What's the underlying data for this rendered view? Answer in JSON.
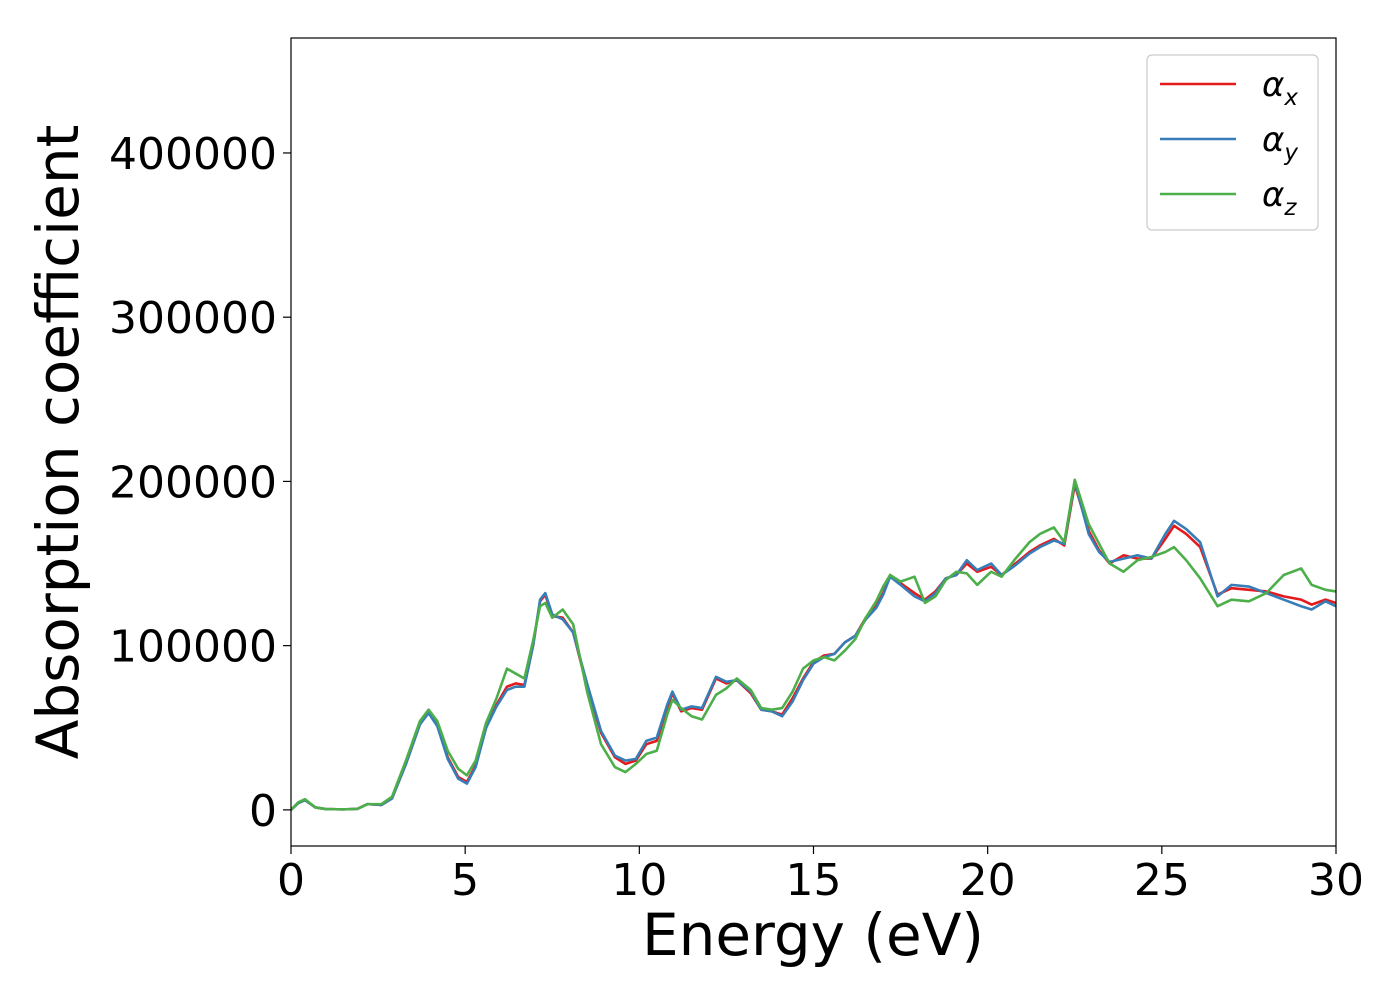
{
  "chart_data": {
    "type": "line",
    "title": "",
    "xlabel": "Energy (eV)",
    "ylabel": "Absorption coefficient",
    "xlim": [
      0,
      30
    ],
    "ylim": [
      -22000,
      470000
    ],
    "xticks": [
      0,
      5,
      10,
      15,
      20,
      25,
      30
    ],
    "yticks": [
      0,
      100000,
      200000,
      300000,
      400000
    ],
    "xtick_labels": [
      "0",
      "5",
      "10",
      "15",
      "20",
      "25",
      "30"
    ],
    "ytick_labels": [
      "0",
      "100000",
      "200000",
      "300000",
      "400000"
    ],
    "grid": false,
    "legend_position": "top-right",
    "series": [
      {
        "name": "α_x",
        "label_main": "α",
        "label_sub": "x",
        "color": "#e41a1c",
        "points": [
          [
            0,
            0
          ],
          [
            0.2,
            4000
          ],
          [
            0.4,
            6000
          ],
          [
            0.7,
            1500
          ],
          [
            1.0,
            500
          ],
          [
            1.5,
            300
          ],
          [
            1.9,
            600
          ],
          [
            2.2,
            3500
          ],
          [
            2.6,
            3000
          ],
          [
            2.9,
            7000
          ],
          [
            3.3,
            28000
          ],
          [
            3.7,
            52000
          ],
          [
            3.95,
            60000
          ],
          [
            4.2,
            52000
          ],
          [
            4.5,
            32000
          ],
          [
            4.8,
            20000
          ],
          [
            5.05,
            17000
          ],
          [
            5.3,
            27000
          ],
          [
            5.6,
            50000
          ],
          [
            5.9,
            64000
          ],
          [
            6.2,
            75000
          ],
          [
            6.45,
            77000
          ],
          [
            6.7,
            76000
          ],
          [
            6.95,
            100000
          ],
          [
            7.15,
            127000
          ],
          [
            7.3,
            131000
          ],
          [
            7.5,
            118000
          ],
          [
            7.8,
            117000
          ],
          [
            8.1,
            108000
          ],
          [
            8.5,
            75000
          ],
          [
            8.9,
            47000
          ],
          [
            9.3,
            32000
          ],
          [
            9.6,
            28000
          ],
          [
            9.9,
            30000
          ],
          [
            10.2,
            40000
          ],
          [
            10.5,
            42000
          ],
          [
            10.8,
            62000
          ],
          [
            10.95,
            71000
          ],
          [
            11.2,
            60000
          ],
          [
            11.5,
            62000
          ],
          [
            11.8,
            61000
          ],
          [
            12.2,
            80000
          ],
          [
            12.5,
            77000
          ],
          [
            12.8,
            79000
          ],
          [
            13.2,
            71000
          ],
          [
            13.5,
            61000
          ],
          [
            13.8,
            60000
          ],
          [
            14.1,
            58000
          ],
          [
            14.4,
            68000
          ],
          [
            14.7,
            80000
          ],
          [
            15.0,
            90000
          ],
          [
            15.3,
            94000
          ],
          [
            15.6,
            95000
          ],
          [
            15.9,
            102000
          ],
          [
            16.2,
            106000
          ],
          [
            16.5,
            117000
          ],
          [
            16.8,
            124000
          ],
          [
            17.0,
            132000
          ],
          [
            17.2,
            143000
          ],
          [
            17.5,
            138000
          ],
          [
            17.9,
            132000
          ],
          [
            18.2,
            128000
          ],
          [
            18.5,
            133000
          ],
          [
            18.8,
            141000
          ],
          [
            19.1,
            143000
          ],
          [
            19.4,
            150000
          ],
          [
            19.7,
            145000
          ],
          [
            20.1,
            148000
          ],
          [
            20.4,
            143000
          ],
          [
            20.8,
            150000
          ],
          [
            21.2,
            157000
          ],
          [
            21.5,
            161000
          ],
          [
            21.9,
            165000
          ],
          [
            22.2,
            161000
          ],
          [
            22.5,
            198000
          ],
          [
            22.9,
            170000
          ],
          [
            23.2,
            158000
          ],
          [
            23.5,
            150000
          ],
          [
            23.9,
            155000
          ],
          [
            24.3,
            153000
          ],
          [
            24.7,
            153000
          ],
          [
            25.1,
            165000
          ],
          [
            25.35,
            173000
          ],
          [
            25.7,
            168000
          ],
          [
            26.1,
            160000
          ],
          [
            26.6,
            131000
          ],
          [
            27.0,
            135000
          ],
          [
            27.5,
            134000
          ],
          [
            28.0,
            133000
          ],
          [
            28.5,
            130000
          ],
          [
            29.0,
            128000
          ],
          [
            29.3,
            125000
          ],
          [
            29.7,
            128000
          ],
          [
            30,
            126000
          ]
        ]
      },
      {
        "name": "α_y",
        "label_main": "α",
        "label_sub": "y",
        "color": "#377eb8",
        "points": [
          [
            0,
            0
          ],
          [
            0.2,
            4000
          ],
          [
            0.4,
            6000
          ],
          [
            0.7,
            1500
          ],
          [
            1.0,
            500
          ],
          [
            1.5,
            300
          ],
          [
            1.9,
            600
          ],
          [
            2.2,
            3500
          ],
          [
            2.6,
            3000
          ],
          [
            2.9,
            7000
          ],
          [
            3.3,
            28000
          ],
          [
            3.7,
            52000
          ],
          [
            3.95,
            59000
          ],
          [
            4.2,
            51000
          ],
          [
            4.5,
            31000
          ],
          [
            4.8,
            19000
          ],
          [
            5.05,
            16000
          ],
          [
            5.3,
            26000
          ],
          [
            5.6,
            50000
          ],
          [
            5.9,
            63000
          ],
          [
            6.2,
            73000
          ],
          [
            6.45,
            75000
          ],
          [
            6.7,
            75000
          ],
          [
            6.95,
            100000
          ],
          [
            7.15,
            128000
          ],
          [
            7.3,
            132000
          ],
          [
            7.5,
            119000
          ],
          [
            7.8,
            116000
          ],
          [
            8.1,
            108000
          ],
          [
            8.5,
            77000
          ],
          [
            8.9,
            48000
          ],
          [
            9.3,
            33000
          ],
          [
            9.6,
            30000
          ],
          [
            9.9,
            31000
          ],
          [
            10.2,
            42000
          ],
          [
            10.5,
            44000
          ],
          [
            10.8,
            64000
          ],
          [
            10.95,
            72000
          ],
          [
            11.2,
            61000
          ],
          [
            11.5,
            63000
          ],
          [
            11.8,
            62000
          ],
          [
            12.2,
            81000
          ],
          [
            12.5,
            78000
          ],
          [
            12.8,
            79000
          ],
          [
            13.2,
            72000
          ],
          [
            13.5,
            61000
          ],
          [
            13.8,
            60000
          ],
          [
            14.1,
            57000
          ],
          [
            14.4,
            66000
          ],
          [
            14.7,
            79000
          ],
          [
            15.0,
            89000
          ],
          [
            15.3,
            93000
          ],
          [
            15.6,
            95000
          ],
          [
            15.9,
            102000
          ],
          [
            16.2,
            106000
          ],
          [
            16.5,
            116000
          ],
          [
            16.8,
            123000
          ],
          [
            17.0,
            131000
          ],
          [
            17.2,
            142000
          ],
          [
            17.5,
            137000
          ],
          [
            17.9,
            130000
          ],
          [
            18.2,
            127000
          ],
          [
            18.5,
            132000
          ],
          [
            18.8,
            141000
          ],
          [
            19.1,
            143000
          ],
          [
            19.4,
            152000
          ],
          [
            19.7,
            146000
          ],
          [
            20.1,
            150000
          ],
          [
            20.4,
            143000
          ],
          [
            20.8,
            149000
          ],
          [
            21.2,
            156000
          ],
          [
            21.5,
            160000
          ],
          [
            21.9,
            164000
          ],
          [
            22.2,
            162000
          ],
          [
            22.5,
            200000
          ],
          [
            22.9,
            168000
          ],
          [
            23.2,
            157000
          ],
          [
            23.5,
            151000
          ],
          [
            23.9,
            153000
          ],
          [
            24.3,
            155000
          ],
          [
            24.7,
            153000
          ],
          [
            25.1,
            168000
          ],
          [
            25.35,
            176000
          ],
          [
            25.7,
            171000
          ],
          [
            26.1,
            163000
          ],
          [
            26.6,
            130000
          ],
          [
            27.0,
            137000
          ],
          [
            27.5,
            136000
          ],
          [
            28.0,
            132000
          ],
          [
            28.5,
            128000
          ],
          [
            29.0,
            124000
          ],
          [
            29.3,
            122000
          ],
          [
            29.7,
            127000
          ],
          [
            30,
            124000
          ]
        ]
      },
      {
        "name": "α_z",
        "label_main": "α",
        "label_sub": "z",
        "color": "#4daf4a",
        "points": [
          [
            0,
            0
          ],
          [
            0.2,
            4500
          ],
          [
            0.4,
            6500
          ],
          [
            0.7,
            1500
          ],
          [
            1.0,
            500
          ],
          [
            1.5,
            300
          ],
          [
            1.9,
            600
          ],
          [
            2.2,
            3500
          ],
          [
            2.6,
            3500
          ],
          [
            2.9,
            8000
          ],
          [
            3.3,
            30000
          ],
          [
            3.7,
            54000
          ],
          [
            3.95,
            61000
          ],
          [
            4.2,
            54000
          ],
          [
            4.5,
            36000
          ],
          [
            4.8,
            25000
          ],
          [
            5.05,
            21000
          ],
          [
            5.3,
            30000
          ],
          [
            5.6,
            53000
          ],
          [
            5.9,
            68000
          ],
          [
            6.2,
            86000
          ],
          [
            6.45,
            83000
          ],
          [
            6.7,
            80000
          ],
          [
            6.95,
            103000
          ],
          [
            7.15,
            124000
          ],
          [
            7.3,
            126000
          ],
          [
            7.5,
            117000
          ],
          [
            7.8,
            122000
          ],
          [
            8.1,
            113000
          ],
          [
            8.5,
            72000
          ],
          [
            8.9,
            40000
          ],
          [
            9.3,
            26000
          ],
          [
            9.6,
            23000
          ],
          [
            9.9,
            28000
          ],
          [
            10.2,
            34000
          ],
          [
            10.5,
            36000
          ],
          [
            10.8,
            58000
          ],
          [
            10.95,
            67000
          ],
          [
            11.2,
            62000
          ],
          [
            11.5,
            57000
          ],
          [
            11.8,
            55000
          ],
          [
            12.2,
            70000
          ],
          [
            12.5,
            74000
          ],
          [
            12.8,
            80000
          ],
          [
            13.2,
            73000
          ],
          [
            13.5,
            62000
          ],
          [
            13.8,
            61000
          ],
          [
            14.1,
            62000
          ],
          [
            14.4,
            72000
          ],
          [
            14.7,
            86000
          ],
          [
            15.0,
            91000
          ],
          [
            15.3,
            93000
          ],
          [
            15.6,
            91000
          ],
          [
            15.9,
            97000
          ],
          [
            16.2,
            104000
          ],
          [
            16.5,
            117000
          ],
          [
            16.8,
            127000
          ],
          [
            17.0,
            136000
          ],
          [
            17.2,
            143000
          ],
          [
            17.5,
            139000
          ],
          [
            17.9,
            142000
          ],
          [
            18.2,
            126000
          ],
          [
            18.5,
            130000
          ],
          [
            18.8,
            140000
          ],
          [
            19.1,
            145000
          ],
          [
            19.4,
            144000
          ],
          [
            19.7,
            137000
          ],
          [
            20.1,
            145000
          ],
          [
            20.4,
            142000
          ],
          [
            20.8,
            153000
          ],
          [
            21.2,
            163000
          ],
          [
            21.5,
            168000
          ],
          [
            21.9,
            172000
          ],
          [
            22.2,
            163000
          ],
          [
            22.5,
            201000
          ],
          [
            22.9,
            174000
          ],
          [
            23.2,
            162000
          ],
          [
            23.5,
            150000
          ],
          [
            23.9,
            145000
          ],
          [
            24.3,
            152000
          ],
          [
            24.7,
            154000
          ],
          [
            25.1,
            157000
          ],
          [
            25.35,
            160000
          ],
          [
            25.7,
            152000
          ],
          [
            26.1,
            141000
          ],
          [
            26.6,
            124000
          ],
          [
            27.0,
            128000
          ],
          [
            27.5,
            127000
          ],
          [
            28.0,
            132000
          ],
          [
            28.5,
            143000
          ],
          [
            29.0,
            147000
          ],
          [
            29.3,
            137000
          ],
          [
            29.7,
            134000
          ],
          [
            30,
            133000
          ]
        ]
      }
    ]
  }
}
